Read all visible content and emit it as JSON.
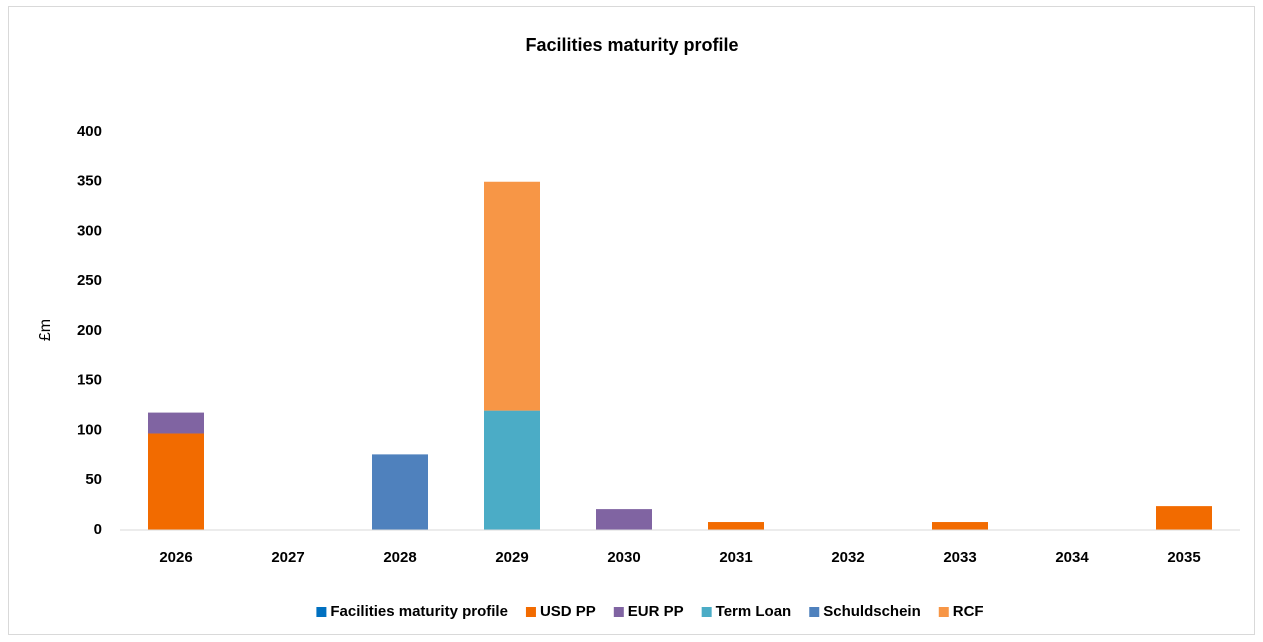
{
  "chart_data": {
    "type": "bar",
    "stacked": true,
    "title": "Facilities maturity profile",
    "y_label": "£m",
    "categories": [
      "2026",
      "2027",
      "2028",
      "2029",
      "2030",
      "2031",
      "2032",
      "2033",
      "2034",
      "2035"
    ],
    "series": [
      {
        "name": "Facilities maturity profile",
        "color": "#0070c0",
        "values": [
          null,
          null,
          null,
          null,
          null,
          null,
          null,
          null,
          null,
          null
        ]
      },
      {
        "name": "USD PP",
        "color": "#f26b00",
        "values": [
          97,
          null,
          null,
          null,
          null,
          8,
          null,
          8,
          null,
          24
        ]
      },
      {
        "name": "EUR PP",
        "color": "#8064a2",
        "values": [
          21,
          null,
          null,
          null,
          21,
          null,
          null,
          null,
          null,
          null
        ]
      },
      {
        "name": "Term Loan",
        "color": "#4bacc6",
        "values": [
          null,
          null,
          null,
          120,
          null,
          null,
          null,
          null,
          null,
          null
        ]
      },
      {
        "name": "Schuldschein",
        "color": "#4f81bd",
        "values": [
          null,
          null,
          76,
          null,
          null,
          null,
          null,
          null,
          null,
          null
        ]
      },
      {
        "name": "RCF",
        "color": "#f79646",
        "values": [
          null,
          null,
          null,
          230,
          null,
          null,
          null,
          null,
          null,
          null
        ]
      }
    ],
    "ylim": [
      0,
      400
    ],
    "yticks": [
      0,
      50,
      100,
      150,
      200,
      250,
      300,
      350,
      400
    ],
    "grid": false,
    "legend": "bottom"
  }
}
